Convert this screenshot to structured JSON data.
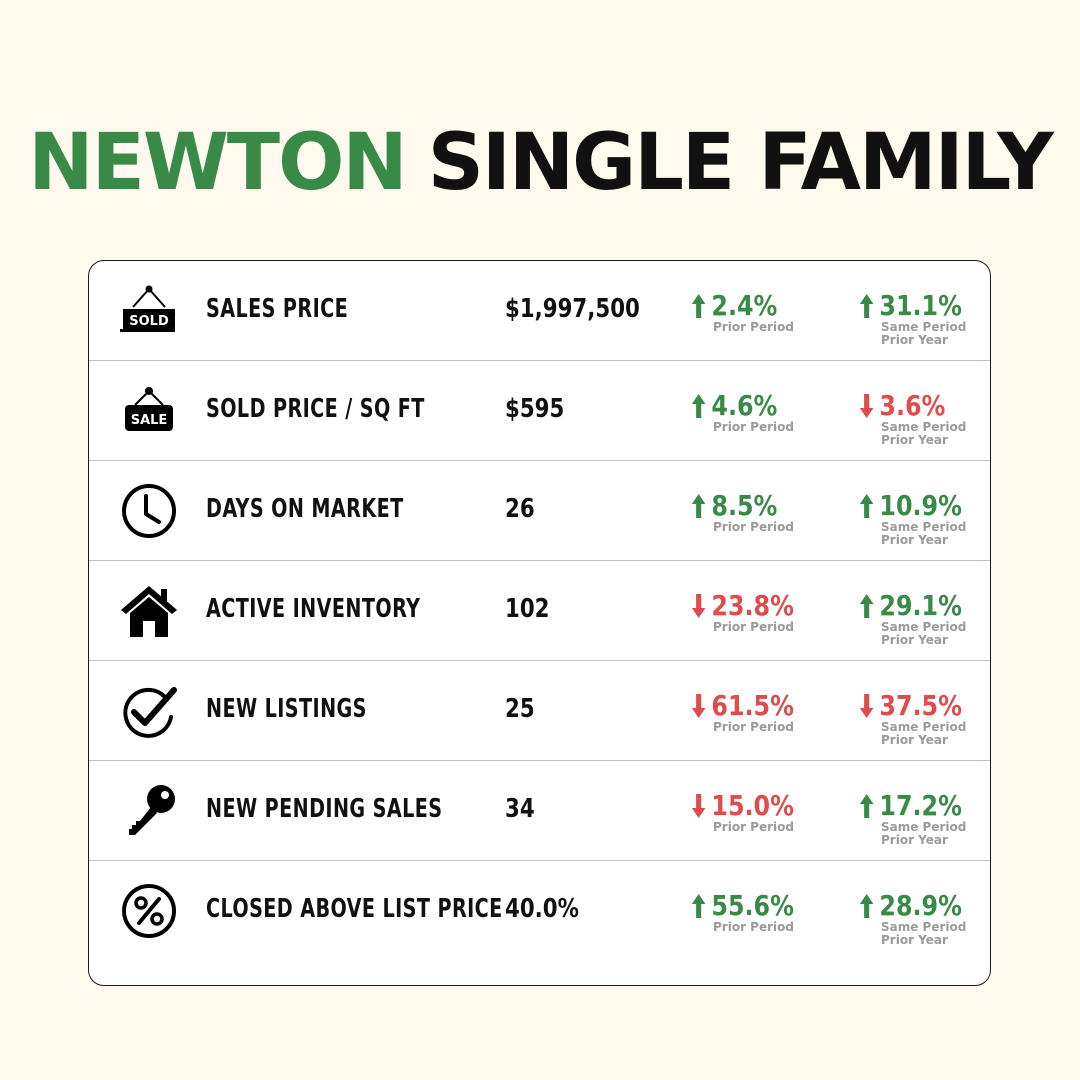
{
  "header": {
    "city": "NEWTON",
    "property_type": "SINGLE FAMILY"
  },
  "colors": {
    "accent_green": "#3a8a47",
    "decline_red": "#e04b4b",
    "background": "#fefaee"
  },
  "compare_labels": {
    "prior_period": "Prior Period",
    "same_period_l1": "Same Period",
    "same_period_l2": "Prior Year"
  },
  "metrics": [
    {
      "icon": "sold-sign-icon",
      "label": "SALES PRICE",
      "value": "$1,997,500",
      "prior_period": {
        "direction": "up",
        "change": "2.4%"
      },
      "prior_year": {
        "direction": "up",
        "change": "31.1%"
      }
    },
    {
      "icon": "sale-sign-icon",
      "label": "SOLD PRICE / SQ FT",
      "value": "$595",
      "prior_period": {
        "direction": "up",
        "change": "4.6%"
      },
      "prior_year": {
        "direction": "down",
        "change": "3.6%"
      }
    },
    {
      "icon": "clock-icon",
      "label": "DAYS ON MARKET",
      "value": "26",
      "prior_period": {
        "direction": "up",
        "change": "8.5%"
      },
      "prior_year": {
        "direction": "up",
        "change": "10.9%"
      }
    },
    {
      "icon": "house-icon",
      "label": "ACTIVE INVENTORY",
      "value": "102",
      "prior_period": {
        "direction": "down",
        "change": "23.8%"
      },
      "prior_year": {
        "direction": "up",
        "change": "29.1%"
      }
    },
    {
      "icon": "checkmark-circle-icon",
      "label": "NEW LISTINGS",
      "value": "25",
      "prior_period": {
        "direction": "down",
        "change": "61.5%"
      },
      "prior_year": {
        "direction": "down",
        "change": "37.5%"
      }
    },
    {
      "icon": "key-icon",
      "label": "NEW PENDING SALES",
      "value": "34",
      "prior_period": {
        "direction": "down",
        "change": "15.0%"
      },
      "prior_year": {
        "direction": "up",
        "change": "17.2%"
      }
    },
    {
      "icon": "percent-circle-icon",
      "label": "CLOSED ABOVE LIST PRICE",
      "value": "40.0%",
      "prior_period": {
        "direction": "up",
        "change": "55.6%"
      },
      "prior_year": {
        "direction": "up",
        "change": "28.9%"
      }
    }
  ]
}
